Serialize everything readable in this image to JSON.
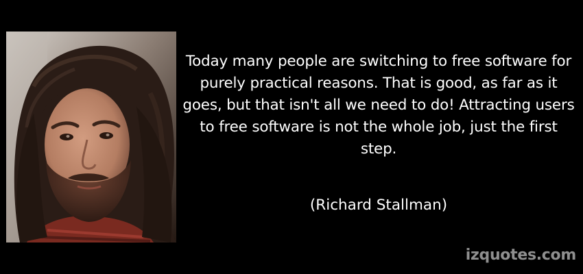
{
  "quote": {
    "text": "Today many people are switching to free software for purely practical reasons. That is good, as far as it goes, but that isn't all we need to do! Attracting users to free software is not the whole job, just the first step.",
    "author": "(Richard Stallman)"
  },
  "watermark": {
    "text": "izquotes.com"
  },
  "portrait": {
    "icon": "portrait-photo",
    "background_color": "#3a2a22",
    "hair_color": "#2a1c16",
    "skin_color": "#b9866b",
    "beard_color": "#4a2e22",
    "shirt_color": "#7a2a20"
  },
  "colors": {
    "background": "#000000",
    "text": "#ffffff",
    "watermark": "#8f8f8f"
  }
}
